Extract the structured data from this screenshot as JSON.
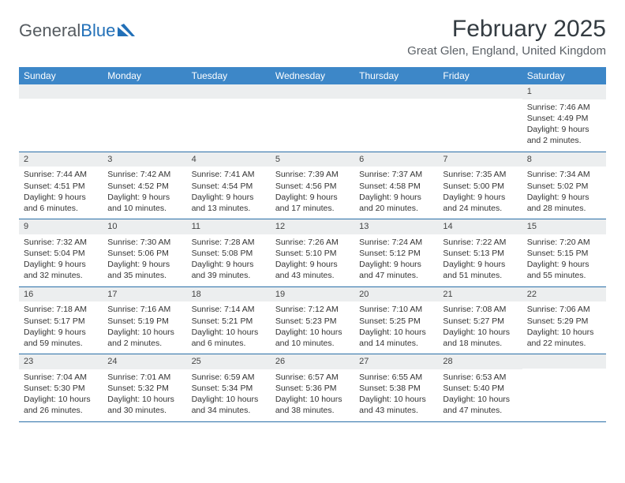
{
  "logo": {
    "part1": "General",
    "part2": "Blue"
  },
  "header": {
    "month": "February 2025",
    "location": "Great Glen, England, United Kingdom"
  },
  "colors": {
    "header_bar": "#3d87c8",
    "daynum_bg": "#eceeef",
    "row_border": "#2a6fa8",
    "logo_gray": "#555b60",
    "logo_blue": "#2270b8"
  },
  "days_of_week": [
    "Sunday",
    "Monday",
    "Tuesday",
    "Wednesday",
    "Thursday",
    "Friday",
    "Saturday"
  ],
  "weeks": [
    [
      null,
      null,
      null,
      null,
      null,
      null,
      {
        "n": "1",
        "sr": "Sunrise: 7:46 AM",
        "ss": "Sunset: 4:49 PM",
        "dl": "Daylight: 9 hours and 2 minutes."
      }
    ],
    [
      {
        "n": "2",
        "sr": "Sunrise: 7:44 AM",
        "ss": "Sunset: 4:51 PM",
        "dl": "Daylight: 9 hours and 6 minutes."
      },
      {
        "n": "3",
        "sr": "Sunrise: 7:42 AM",
        "ss": "Sunset: 4:52 PM",
        "dl": "Daylight: 9 hours and 10 minutes."
      },
      {
        "n": "4",
        "sr": "Sunrise: 7:41 AM",
        "ss": "Sunset: 4:54 PM",
        "dl": "Daylight: 9 hours and 13 minutes."
      },
      {
        "n": "5",
        "sr": "Sunrise: 7:39 AM",
        "ss": "Sunset: 4:56 PM",
        "dl": "Daylight: 9 hours and 17 minutes."
      },
      {
        "n": "6",
        "sr": "Sunrise: 7:37 AM",
        "ss": "Sunset: 4:58 PM",
        "dl": "Daylight: 9 hours and 20 minutes."
      },
      {
        "n": "7",
        "sr": "Sunrise: 7:35 AM",
        "ss": "Sunset: 5:00 PM",
        "dl": "Daylight: 9 hours and 24 minutes."
      },
      {
        "n": "8",
        "sr": "Sunrise: 7:34 AM",
        "ss": "Sunset: 5:02 PM",
        "dl": "Daylight: 9 hours and 28 minutes."
      }
    ],
    [
      {
        "n": "9",
        "sr": "Sunrise: 7:32 AM",
        "ss": "Sunset: 5:04 PM",
        "dl": "Daylight: 9 hours and 32 minutes."
      },
      {
        "n": "10",
        "sr": "Sunrise: 7:30 AM",
        "ss": "Sunset: 5:06 PM",
        "dl": "Daylight: 9 hours and 35 minutes."
      },
      {
        "n": "11",
        "sr": "Sunrise: 7:28 AM",
        "ss": "Sunset: 5:08 PM",
        "dl": "Daylight: 9 hours and 39 minutes."
      },
      {
        "n": "12",
        "sr": "Sunrise: 7:26 AM",
        "ss": "Sunset: 5:10 PM",
        "dl": "Daylight: 9 hours and 43 minutes."
      },
      {
        "n": "13",
        "sr": "Sunrise: 7:24 AM",
        "ss": "Sunset: 5:12 PM",
        "dl": "Daylight: 9 hours and 47 minutes."
      },
      {
        "n": "14",
        "sr": "Sunrise: 7:22 AM",
        "ss": "Sunset: 5:13 PM",
        "dl": "Daylight: 9 hours and 51 minutes."
      },
      {
        "n": "15",
        "sr": "Sunrise: 7:20 AM",
        "ss": "Sunset: 5:15 PM",
        "dl": "Daylight: 9 hours and 55 minutes."
      }
    ],
    [
      {
        "n": "16",
        "sr": "Sunrise: 7:18 AM",
        "ss": "Sunset: 5:17 PM",
        "dl": "Daylight: 9 hours and 59 minutes."
      },
      {
        "n": "17",
        "sr": "Sunrise: 7:16 AM",
        "ss": "Sunset: 5:19 PM",
        "dl": "Daylight: 10 hours and 2 minutes."
      },
      {
        "n": "18",
        "sr": "Sunrise: 7:14 AM",
        "ss": "Sunset: 5:21 PM",
        "dl": "Daylight: 10 hours and 6 minutes."
      },
      {
        "n": "19",
        "sr": "Sunrise: 7:12 AM",
        "ss": "Sunset: 5:23 PM",
        "dl": "Daylight: 10 hours and 10 minutes."
      },
      {
        "n": "20",
        "sr": "Sunrise: 7:10 AM",
        "ss": "Sunset: 5:25 PM",
        "dl": "Daylight: 10 hours and 14 minutes."
      },
      {
        "n": "21",
        "sr": "Sunrise: 7:08 AM",
        "ss": "Sunset: 5:27 PM",
        "dl": "Daylight: 10 hours and 18 minutes."
      },
      {
        "n": "22",
        "sr": "Sunrise: 7:06 AM",
        "ss": "Sunset: 5:29 PM",
        "dl": "Daylight: 10 hours and 22 minutes."
      }
    ],
    [
      {
        "n": "23",
        "sr": "Sunrise: 7:04 AM",
        "ss": "Sunset: 5:30 PM",
        "dl": "Daylight: 10 hours and 26 minutes."
      },
      {
        "n": "24",
        "sr": "Sunrise: 7:01 AM",
        "ss": "Sunset: 5:32 PM",
        "dl": "Daylight: 10 hours and 30 minutes."
      },
      {
        "n": "25",
        "sr": "Sunrise: 6:59 AM",
        "ss": "Sunset: 5:34 PM",
        "dl": "Daylight: 10 hours and 34 minutes."
      },
      {
        "n": "26",
        "sr": "Sunrise: 6:57 AM",
        "ss": "Sunset: 5:36 PM",
        "dl": "Daylight: 10 hours and 38 minutes."
      },
      {
        "n": "27",
        "sr": "Sunrise: 6:55 AM",
        "ss": "Sunset: 5:38 PM",
        "dl": "Daylight: 10 hours and 43 minutes."
      },
      {
        "n": "28",
        "sr": "Sunrise: 6:53 AM",
        "ss": "Sunset: 5:40 PM",
        "dl": "Daylight: 10 hours and 47 minutes."
      },
      null
    ]
  ]
}
